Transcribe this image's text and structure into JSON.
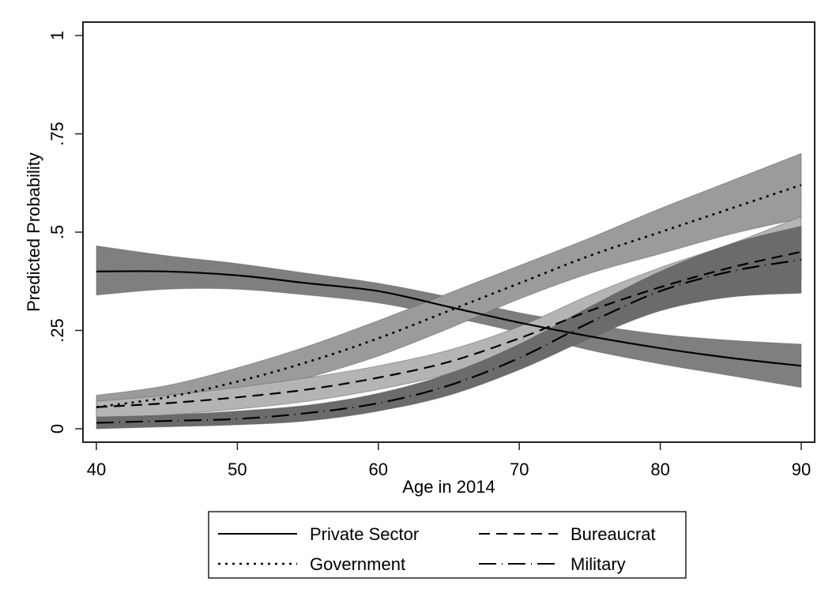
{
  "chart_data": {
    "type": "line",
    "title": "",
    "xlabel": "Age in 2014",
    "ylabel": "Predicted Probability",
    "xlim": [
      40,
      90
    ],
    "ylim": [
      0,
      1
    ],
    "x_ticks": [
      40,
      50,
      60,
      70,
      80,
      90
    ],
    "x_tick_labels": [
      "40",
      "50",
      "60",
      "70",
      "80",
      "90"
    ],
    "y_ticks": [
      0,
      0.25,
      0.5,
      0.75,
      1
    ],
    "y_tick_labels": [
      "0",
      ".25",
      ".5",
      ".75",
      "1"
    ],
    "grid": false,
    "legend_position": "bottom",
    "x": [
      40,
      45,
      50,
      55,
      60,
      65,
      70,
      75,
      80,
      85,
      90
    ],
    "series": [
      {
        "name": "Private Sector",
        "line_style": "solid",
        "band_color": "#7f7f7f",
        "values": [
          0.4,
          0.4,
          0.39,
          0.37,
          0.35,
          0.31,
          0.27,
          0.235,
          0.205,
          0.18,
          0.16
        ],
        "lower": [
          0.34,
          0.355,
          0.355,
          0.34,
          0.32,
          0.285,
          0.245,
          0.2,
          0.165,
          0.135,
          0.105
        ],
        "upper": [
          0.465,
          0.44,
          0.42,
          0.395,
          0.37,
          0.335,
          0.295,
          0.265,
          0.24,
          0.225,
          0.215
        ]
      },
      {
        "name": "Government",
        "line_style": "dotted",
        "band_color": "#9b9b9b",
        "values": [
          0.055,
          0.08,
          0.12,
          0.17,
          0.23,
          0.3,
          0.37,
          0.44,
          0.5,
          0.56,
          0.62
        ],
        "lower": [
          0.03,
          0.05,
          0.085,
          0.13,
          0.185,
          0.255,
          0.33,
          0.395,
          0.445,
          0.495,
          0.535
        ],
        "upper": [
          0.085,
          0.11,
          0.155,
          0.21,
          0.275,
          0.345,
          0.415,
          0.485,
          0.56,
          0.63,
          0.7
        ]
      },
      {
        "name": "Bureaucrat",
        "line_style": "dashed",
        "band_color": "#b4b4b4",
        "values": [
          0.055,
          0.065,
          0.08,
          0.1,
          0.13,
          0.17,
          0.23,
          0.3,
          0.36,
          0.41,
          0.45
        ],
        "lower": [
          0.025,
          0.035,
          0.05,
          0.07,
          0.1,
          0.14,
          0.2,
          0.265,
          0.32,
          0.36,
          0.38
        ],
        "upper": [
          0.07,
          0.085,
          0.105,
          0.13,
          0.16,
          0.2,
          0.26,
          0.34,
          0.41,
          0.47,
          0.54
        ]
      },
      {
        "name": "Military",
        "line_style": "dash-dot",
        "band_color": "#6b6b6b",
        "values": [
          0.015,
          0.02,
          0.025,
          0.04,
          0.065,
          0.11,
          0.18,
          0.27,
          0.35,
          0.4,
          0.43
        ],
        "lower": [
          0.0,
          0.005,
          0.01,
          0.02,
          0.045,
          0.085,
          0.15,
          0.23,
          0.3,
          0.335,
          0.345
        ],
        "upper": [
          0.03,
          0.035,
          0.045,
          0.06,
          0.09,
          0.14,
          0.215,
          0.31,
          0.4,
          0.47,
          0.515
        ]
      }
    ],
    "legend": {
      "columns": 2,
      "entries": [
        "Private Sector",
        "Government",
        "Bureaucrat",
        "Military"
      ]
    }
  }
}
